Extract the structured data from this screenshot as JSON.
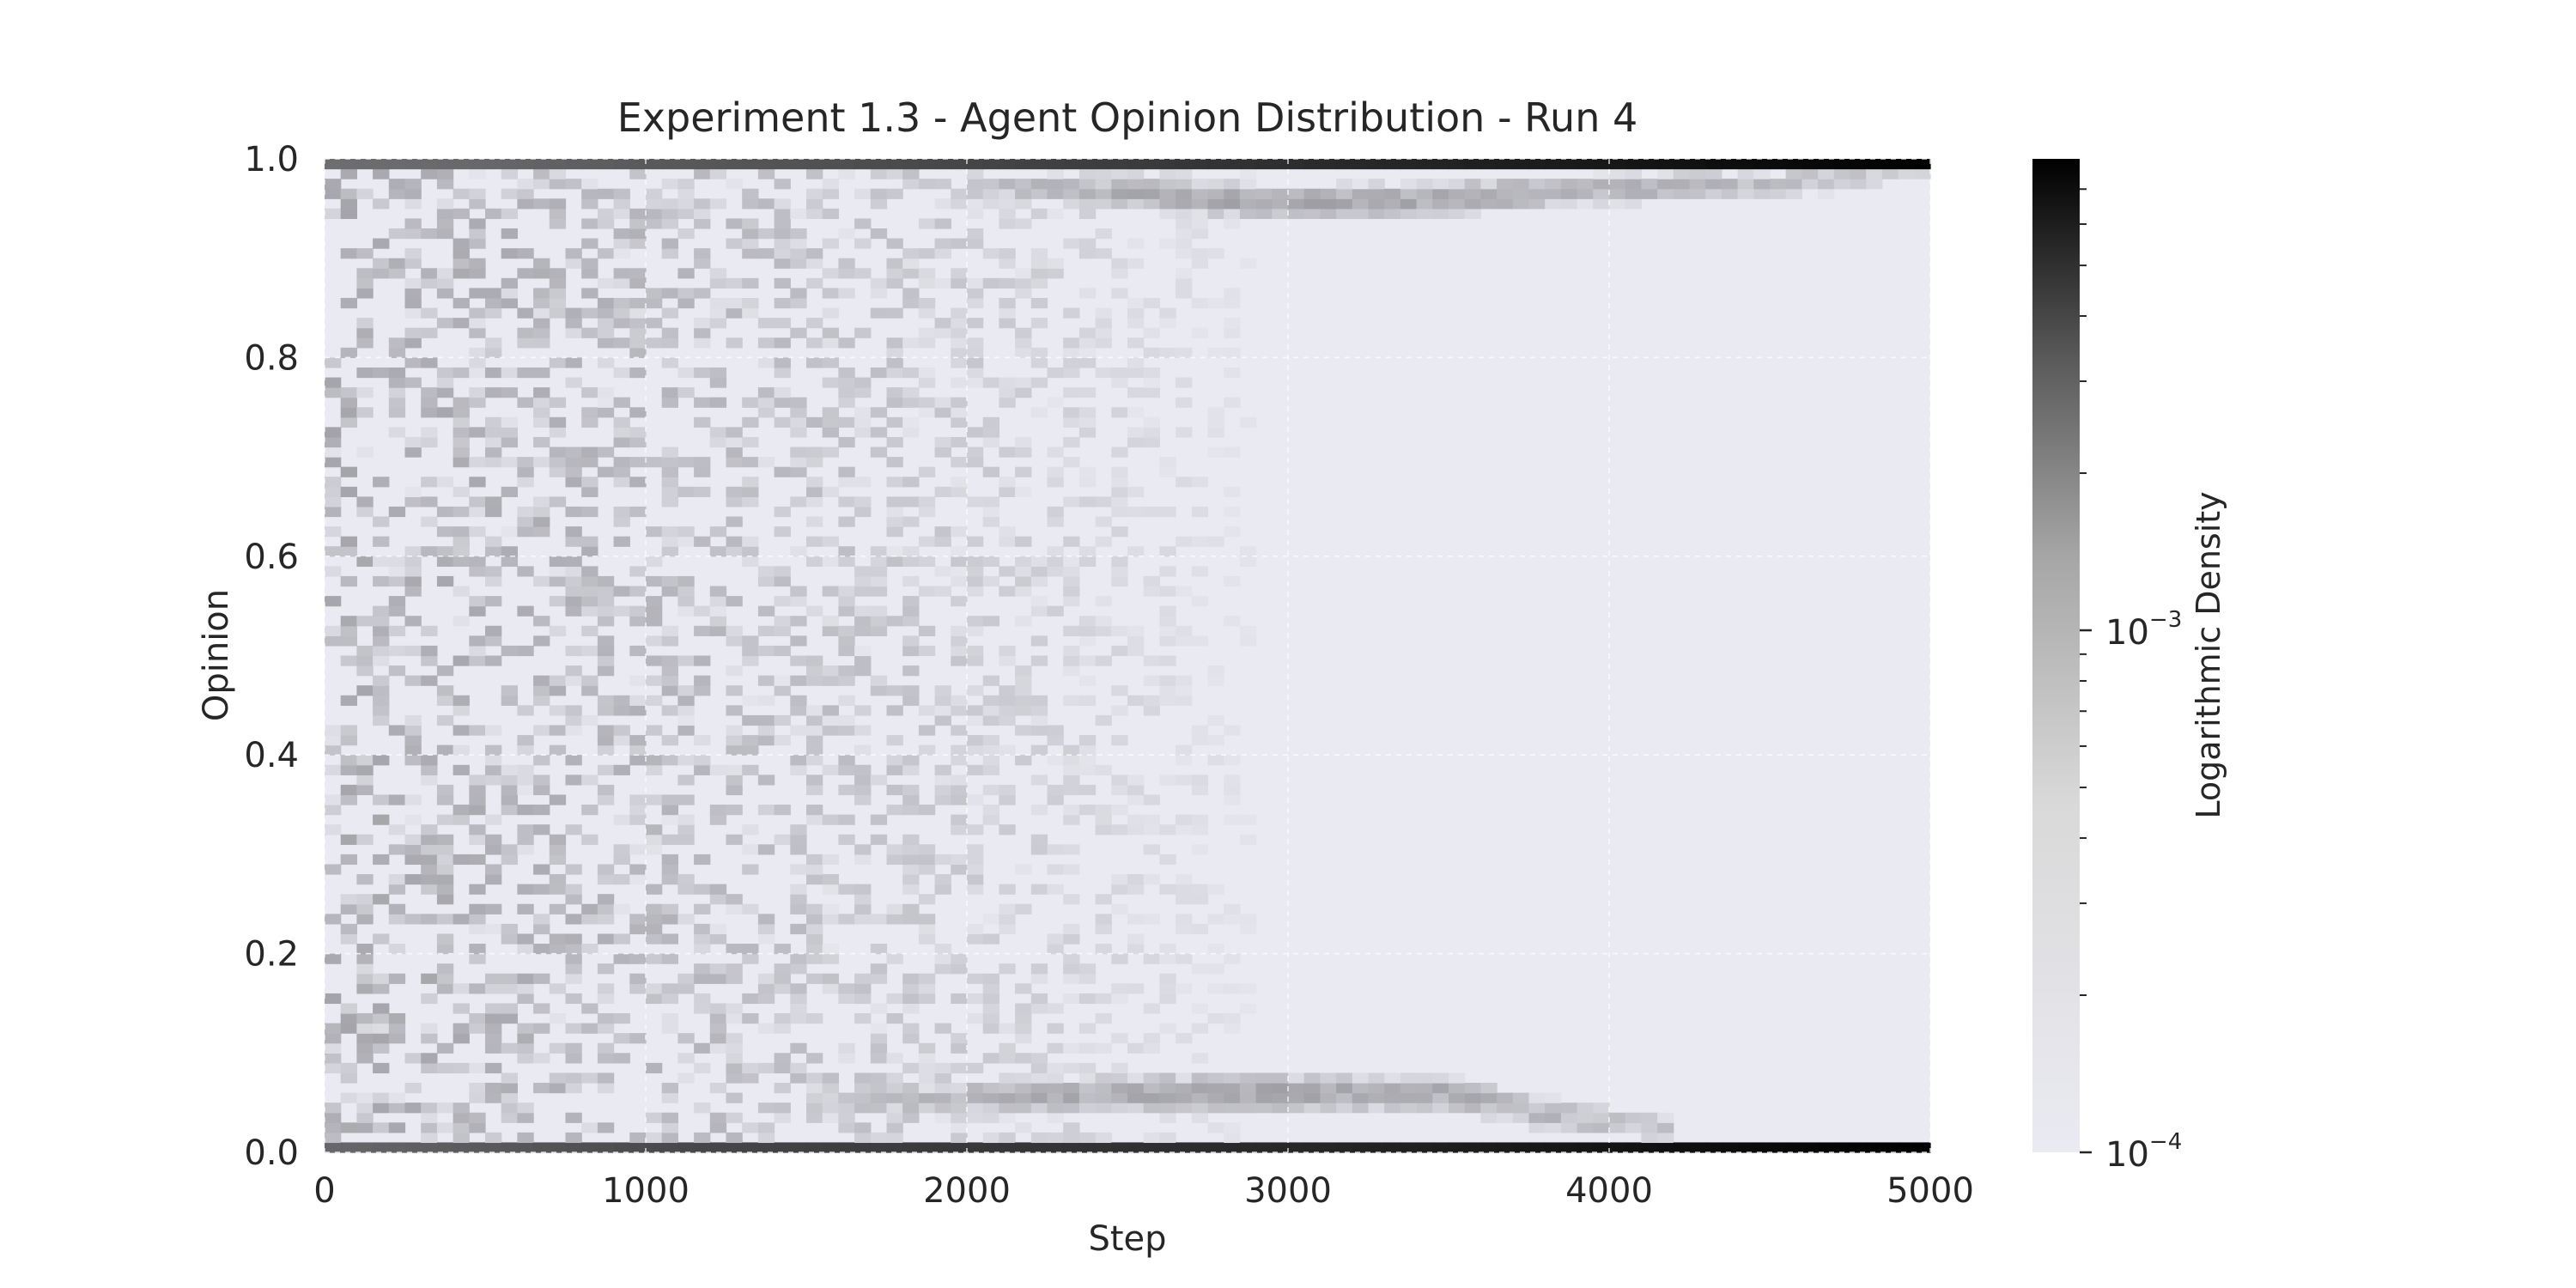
{
  "chart_data": {
    "type": "heatmap",
    "title": "Experiment 1.3 - Agent Opinion Distribution - Run 4",
    "xlabel": "Step",
    "ylabel": "Opinion",
    "xlim": [
      0,
      5000
    ],
    "ylim": [
      0.0,
      1.0
    ],
    "x_ticks": [
      0,
      1000,
      2000,
      3000,
      4000,
      5000
    ],
    "x_tick_labels": [
      "0",
      "1000",
      "2000",
      "3000",
      "4000",
      "5000"
    ],
    "y_ticks": [
      0.0,
      0.2,
      0.4,
      0.6,
      0.8,
      1.0
    ],
    "y_tick_labels": [
      "0.0",
      "0.2",
      "0.4",
      "0.6",
      "0.8",
      "1.0"
    ],
    "grid": true,
    "colormap": "greys",
    "colorbar": {
      "label": "Logarithmic Density",
      "scale": "log",
      "range": [
        0.0001,
        0.008
      ],
      "ticks": [
        0.0001,
        0.001
      ],
      "tick_labels": [
        {
          "base": "10",
          "exp": "−4"
        },
        {
          "base": "10",
          "exp": "−3"
        }
      ],
      "color_low": "#eaeaf2",
      "color_high": "#000000"
    },
    "features": {
      "edge_band_high": {
        "opinion": 1.0,
        "steps": [
          0,
          500,
          1000,
          1500,
          2000,
          2500,
          3000,
          3500,
          4000,
          4500,
          5000
        ],
        "density": [
          0.0008,
          0.0009,
          0.0012,
          0.0014,
          0.0018,
          0.0022,
          0.003,
          0.0038,
          0.0048,
          0.0062,
          0.0078
        ]
      },
      "edge_band_low": {
        "opinion": 0.0,
        "steps": [
          0,
          500,
          1000,
          1500,
          2000,
          2500,
          3000,
          3500,
          4000,
          4500,
          5000
        ],
        "density": [
          0.0009,
          0.0012,
          0.0016,
          0.002,
          0.0024,
          0.0028,
          0.0034,
          0.0042,
          0.0052,
          0.0065,
          0.008
        ]
      },
      "upper_cluster": {
        "steps": [
          2000,
          2500,
          3000,
          3500,
          4000,
          4500,
          4900
        ],
        "opinion": [
          0.975,
          0.965,
          0.955,
          0.96,
          0.97,
          0.975,
          0.985
        ],
        "density": [
          0.00016,
          0.00024,
          0.00028,
          0.00026,
          0.00022,
          0.00018,
          0.00014
        ]
      },
      "lower_cluster": {
        "steps": [
          1500,
          2000,
          2500,
          3000,
          3500,
          3800,
          4100
        ],
        "opinion": [
          0.05,
          0.055,
          0.06,
          0.06,
          0.06,
          0.04,
          0.025
        ],
        "density": [
          0.00015,
          0.00021,
          0.00026,
          0.00027,
          0.00024,
          0.0002,
          0.00016
        ]
      },
      "scattered_early_opinion_density": 0.0002,
      "scattered_fade_step": 3000
    }
  }
}
